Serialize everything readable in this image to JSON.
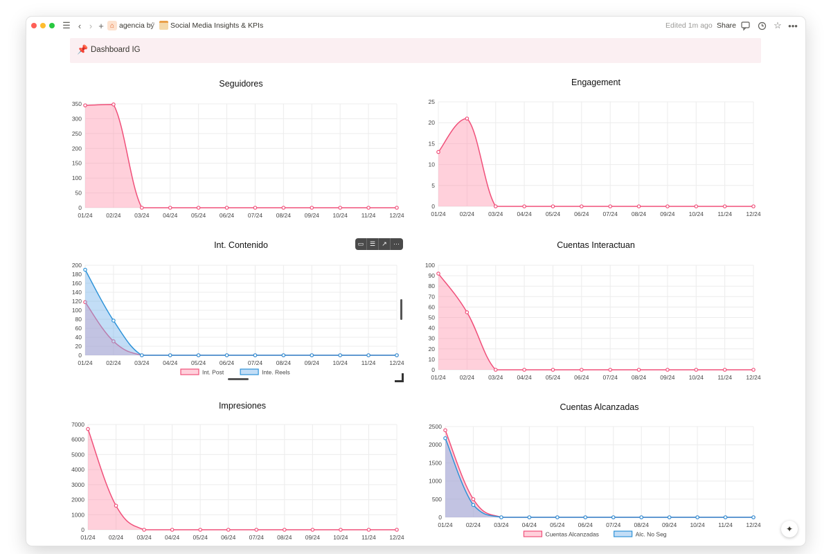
{
  "window": {
    "breadcrumb_workspace": "agencia bý",
    "breadcrumb_sep": "/",
    "breadcrumb_page": "Social Media Insights & KPIs",
    "edited": "Edited 1m ago",
    "share_label": "Share"
  },
  "callout": {
    "icon": "pin-icon",
    "title": "Dashboard IG"
  },
  "colors": {
    "pink_line": "#f0507a",
    "pink_fill": "rgba(255,150,175,0.45)",
    "blue_line": "#2e93d8",
    "blue_fill": "rgba(120,180,235,0.45)",
    "grid": "#ececec"
  },
  "charts": [
    {
      "id": "seguidores",
      "title": "Seguidores",
      "type": "area",
      "y_ticks": [
        "350",
        "300",
        "250",
        "200",
        "150",
        "100",
        "50",
        "0"
      ],
      "ylim": [
        0,
        350
      ],
      "x_ticks": [
        "01/24",
        "02/24",
        "03/24",
        "04/24",
        "05/24",
        "06/24",
        "07/24",
        "08/24",
        "09/24",
        "10/24",
        "11/24",
        "12/24"
      ],
      "series": [
        {
          "color": "pink",
          "values": [
            345,
            348,
            0,
            0,
            0,
            0,
            0,
            0,
            0,
            0,
            0,
            0
          ]
        }
      ],
      "legend": []
    },
    {
      "id": "engagement",
      "title": "Engagement",
      "type": "area",
      "y_ticks": [
        "25",
        "20",
        "15",
        "10",
        "5",
        "0"
      ],
      "ylim": [
        0,
        25
      ],
      "x_ticks": [
        "01/24",
        "02/24",
        "03/24",
        "04/24",
        "05/24",
        "06/24",
        "07/24",
        "08/24",
        "09/24",
        "10/24",
        "11/24",
        "12/24"
      ],
      "series": [
        {
          "color": "pink",
          "values": [
            13,
            21,
            0,
            0,
            0,
            0,
            0,
            0,
            0,
            0,
            0,
            0
          ]
        }
      ],
      "legend": []
    },
    {
      "id": "int-contenido",
      "title": "Int. Contenido",
      "type": "area",
      "y_ticks": [
        "200",
        "180",
        "160",
        "140",
        "120",
        "100",
        "80",
        "60",
        "40",
        "20",
        "0"
      ],
      "ylim": [
        0,
        200
      ],
      "x_ticks": [
        "01/24",
        "02/24",
        "03/24",
        "04/24",
        "05/24",
        "06/24",
        "07/24",
        "08/24",
        "09/24",
        "10/24",
        "11/24",
        "12/24"
      ],
      "series": [
        {
          "name": "Int. Post",
          "color": "pink",
          "values": [
            118,
            31,
            0,
            0,
            0,
            0,
            0,
            0,
            0,
            0,
            0,
            0
          ]
        },
        {
          "name": "Inte. Reels",
          "color": "blue",
          "values": [
            190,
            77,
            0,
            0,
            0,
            0,
            0,
            0,
            0,
            0,
            0,
            0
          ]
        }
      ],
      "legend": [
        "Int. Post",
        "Inte. Reels"
      ]
    },
    {
      "id": "cuentas-interactuan",
      "title": "Cuentas Interactuan",
      "type": "area",
      "y_ticks": [
        "100",
        "90",
        "80",
        "70",
        "60",
        "50",
        "40",
        "30",
        "20",
        "10",
        "0"
      ],
      "ylim": [
        0,
        100
      ],
      "x_ticks": [
        "01/24",
        "02/24",
        "03/24",
        "04/24",
        "05/24",
        "06/24",
        "07/24",
        "08/24",
        "09/24",
        "10/24",
        "11/24",
        "12/24"
      ],
      "series": [
        {
          "color": "pink",
          "values": [
            92,
            55,
            0,
            0,
            0,
            0,
            0,
            0,
            0,
            0,
            0,
            0
          ]
        }
      ],
      "legend": []
    },
    {
      "id": "impresiones",
      "title": "Impresiones",
      "type": "area",
      "y_ticks": [
        "7000",
        "6000",
        "5000",
        "4000",
        "3000",
        "2000",
        "1000",
        "0"
      ],
      "ylim": [
        0,
        7000
      ],
      "x_ticks": [
        "01/24",
        "02/24",
        "03/24",
        "04/24",
        "05/24",
        "06/24",
        "07/24",
        "08/24",
        "09/24",
        "10/24",
        "11/24",
        "12/24"
      ],
      "series": [
        {
          "color": "pink",
          "values": [
            6700,
            1600,
            0,
            0,
            0,
            0,
            0,
            0,
            0,
            0,
            0,
            0
          ]
        }
      ],
      "legend": []
    },
    {
      "id": "cuentas-alcanzadas",
      "title": "Cuentas Alcanzadas",
      "type": "area",
      "y_ticks": [
        "2500",
        "2000",
        "1500",
        "1000",
        "500",
        "0"
      ],
      "ylim": [
        0,
        2500
      ],
      "x_ticks": [
        "01/24",
        "02/24",
        "03/24",
        "04/24",
        "05/24",
        "06/24",
        "07/24",
        "08/24",
        "09/24",
        "10/24",
        "11/24",
        "12/24"
      ],
      "series": [
        {
          "name": "Cuentas Alcanzadas",
          "color": "pink",
          "values": [
            2400,
            500,
            0,
            0,
            0,
            0,
            0,
            0,
            0,
            0,
            0,
            0
          ]
        },
        {
          "name": "Alc. No Seg",
          "color": "blue",
          "values": [
            2180,
            340,
            0,
            0,
            0,
            0,
            0,
            0,
            0,
            0,
            0,
            0
          ]
        }
      ],
      "legend": [
        "Cuentas Alcanzadas",
        "Alc. No Seg"
      ]
    }
  ],
  "chart_data": [
    {
      "type": "area",
      "title": "Seguidores",
      "categories": [
        "01/24",
        "02/24",
        "03/24",
        "04/24",
        "05/24",
        "06/24",
        "07/24",
        "08/24",
        "09/24",
        "10/24",
        "11/24",
        "12/24"
      ],
      "ylim": [
        0,
        350
      ],
      "series": [
        {
          "values": [
            345,
            348,
            0,
            0,
            0,
            0,
            0,
            0,
            0,
            0,
            0,
            0
          ]
        }
      ]
    },
    {
      "type": "area",
      "title": "Engagement",
      "categories": [
        "01/24",
        "02/24",
        "03/24",
        "04/24",
        "05/24",
        "06/24",
        "07/24",
        "08/24",
        "09/24",
        "10/24",
        "11/24",
        "12/24"
      ],
      "ylim": [
        0,
        25
      ],
      "series": [
        {
          "values": [
            13,
            21,
            0,
            0,
            0,
            0,
            0,
            0,
            0,
            0,
            0,
            0
          ]
        }
      ]
    },
    {
      "type": "area",
      "title": "Int. Contenido",
      "categories": [
        "01/24",
        "02/24",
        "03/24",
        "04/24",
        "05/24",
        "06/24",
        "07/24",
        "08/24",
        "09/24",
        "10/24",
        "11/24",
        "12/24"
      ],
      "ylim": [
        0,
        200
      ],
      "legend": "bottom",
      "series": [
        {
          "name": "Int. Post",
          "values": [
            118,
            31,
            0,
            0,
            0,
            0,
            0,
            0,
            0,
            0,
            0,
            0
          ]
        },
        {
          "name": "Inte. Reels",
          "values": [
            190,
            77,
            0,
            0,
            0,
            0,
            0,
            0,
            0,
            0,
            0,
            0
          ]
        }
      ]
    },
    {
      "type": "area",
      "title": "Cuentas Interactuan",
      "categories": [
        "01/24",
        "02/24",
        "03/24",
        "04/24",
        "05/24",
        "06/24",
        "07/24",
        "08/24",
        "09/24",
        "10/24",
        "11/24",
        "12/24"
      ],
      "ylim": [
        0,
        100
      ],
      "series": [
        {
          "values": [
            92,
            55,
            0,
            0,
            0,
            0,
            0,
            0,
            0,
            0,
            0,
            0
          ]
        }
      ]
    },
    {
      "type": "area",
      "title": "Impresiones",
      "categories": [
        "01/24",
        "02/24",
        "03/24",
        "04/24",
        "05/24",
        "06/24",
        "07/24",
        "08/24",
        "09/24",
        "10/24",
        "11/24",
        "12/24"
      ],
      "ylim": [
        0,
        7000
      ],
      "series": [
        {
          "values": [
            6700,
            1600,
            0,
            0,
            0,
            0,
            0,
            0,
            0,
            0,
            0,
            0
          ]
        }
      ]
    },
    {
      "type": "area",
      "title": "Cuentas Alcanzadas",
      "categories": [
        "01/24",
        "02/24",
        "03/24",
        "04/24",
        "05/24",
        "06/24",
        "07/24",
        "08/24",
        "09/24",
        "10/24",
        "11/24",
        "12/24"
      ],
      "ylim": [
        0,
        2500
      ],
      "legend": "bottom",
      "series": [
        {
          "name": "Cuentas Alcanzadas",
          "values": [
            2400,
            500,
            0,
            0,
            0,
            0,
            0,
            0,
            0,
            0,
            0,
            0
          ]
        },
        {
          "name": "Alc. No Seg",
          "values": [
            2180,
            340,
            0,
            0,
            0,
            0,
            0,
            0,
            0,
            0,
            0,
            0
          ]
        }
      ]
    }
  ]
}
